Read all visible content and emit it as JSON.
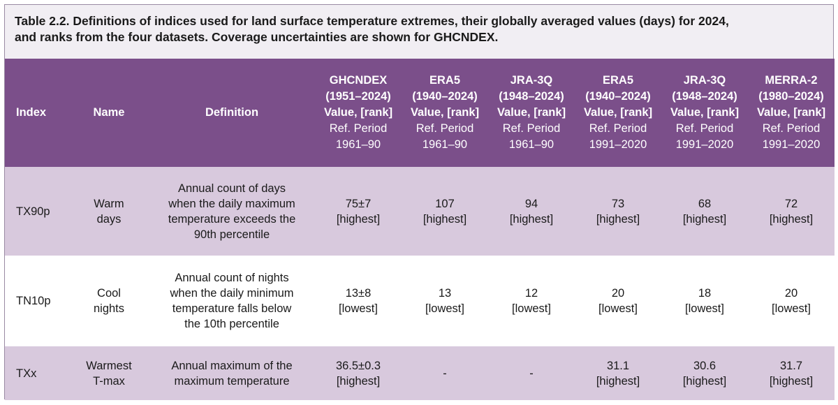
{
  "caption": {
    "line1": "Table 2.2. Definitions of indices used for land surface temperature extremes, their globally averaged values (days) for 2024,",
    "line2": "and ranks from the four datasets. Coverage uncertainties are shown for GHCNDEX."
  },
  "header": {
    "index": "Index",
    "name": "Name",
    "definition": "Definition",
    "columns": [
      {
        "dataset": "GHCNDEX",
        "span": "(1951–2024)",
        "value": "Value, [rank]",
        "ref": "Ref. Period",
        "period": "1961–90"
      },
      {
        "dataset": "ERA5",
        "span": "(1940–2024)",
        "value": "Value, [rank]",
        "ref": "Ref. Period",
        "period": "1961–90"
      },
      {
        "dataset": "JRA-3Q",
        "span": "(1948–2024)",
        "value": "Value, [rank]",
        "ref": "Ref. Period",
        "period": "1961–90"
      },
      {
        "dataset": "ERA5",
        "span": "(1940–2024)",
        "value": "Value, [rank]",
        "ref": "Ref. Period",
        "period": "1991–2020"
      },
      {
        "dataset": "JRA-3Q",
        "span": "(1948–2024)",
        "value": "Value, [rank]",
        "ref": "Ref. Period",
        "period": "1991–2020"
      },
      {
        "dataset": "MERRA-2",
        "span": "(1980–2024)",
        "value": "Value, [rank]",
        "ref": "Ref. Period",
        "period": "1991–2020"
      }
    ]
  },
  "rows": [
    {
      "index": "TX90p",
      "name": [
        "Warm",
        "days"
      ],
      "definition": [
        "Annual count of days",
        "when the daily maximum",
        "temperature exceeds the",
        "90th percentile"
      ],
      "cells": [
        [
          "75±7",
          "[highest]"
        ],
        [
          "107",
          "[highest]"
        ],
        [
          "94",
          "[highest]"
        ],
        [
          "73",
          "[highest]"
        ],
        [
          "68",
          "[highest]"
        ],
        [
          "72",
          "[highest]"
        ]
      ]
    },
    {
      "index": "TN10p",
      "name": [
        "Cool",
        "nights"
      ],
      "definition": [
        "Annual count of nights",
        "when the daily minimum",
        "temperature falls below",
        "the 10th percentile"
      ],
      "cells": [
        [
          "13±8",
          "[lowest]"
        ],
        [
          "13",
          "[lowest]"
        ],
        [
          "12",
          "[lowest]"
        ],
        [
          "20",
          "[lowest]"
        ],
        [
          "18",
          "[lowest]"
        ],
        [
          "20",
          "[lowest]"
        ]
      ]
    },
    {
      "index": "TXx",
      "name": [
        "Warmest",
        "T-max"
      ],
      "definition": [
        "Annual maximum of the",
        "maximum temperature"
      ],
      "cells": [
        [
          "36.5±0.3",
          "[highest]"
        ],
        [
          "-",
          ""
        ],
        [
          "-",
          ""
        ],
        [
          "31.1",
          "[highest]"
        ],
        [
          "30.6",
          "[highest]"
        ],
        [
          "31.7",
          "[highest]"
        ]
      ]
    }
  ]
}
